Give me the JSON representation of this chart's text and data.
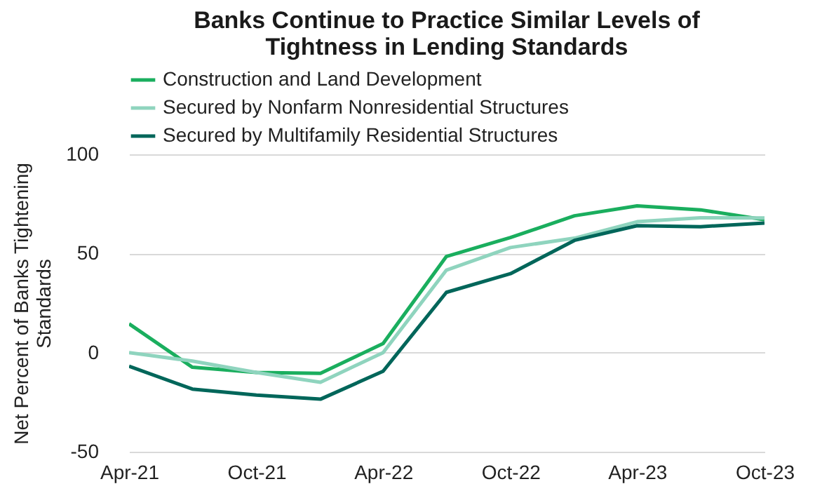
{
  "chart_data": {
    "type": "line",
    "title": [
      "Banks Continue to Practice Similar Levels of",
      "Tightness in Lending Standards"
    ],
    "ylabel": "Net Percent of Banks Tightening Standards",
    "x": [
      "2021-04",
      "2021-07",
      "2021-10",
      "2022-01",
      "2022-04",
      "2022-07",
      "2022-10",
      "2023-01",
      "2023-04",
      "2023-07",
      "2023-10"
    ],
    "series": [
      {
        "name": "Construction and Land Development",
        "color": "#1aae5e",
        "values": [
          14.5,
          -7.4,
          -10,
          -10.5,
          4.6,
          48.5,
          58,
          69,
          74,
          72,
          67
        ]
      },
      {
        "name": "Secured by Nonfarm Nonresidential Structures",
        "color": "#8fd4be",
        "values": [
          0,
          -4.3,
          -10,
          -15,
          0,
          41.6,
          53,
          57.7,
          66,
          68,
          67.9
        ]
      },
      {
        "name": "Secured by Multifamily Residential Structures",
        "color": "#00665a",
        "values": [
          -6.9,
          -18.4,
          -21.4,
          -23.5,
          -9.4,
          30.4,
          39.8,
          56.6,
          64,
          63.5,
          65.3
        ]
      }
    ],
    "xlim": [
      "2021-04",
      "2023-10"
    ],
    "xticks": [
      {
        "value": "2021-04",
        "label": "Apr-21"
      },
      {
        "value": "2021-10",
        "label": "Oct-21"
      },
      {
        "value": "2022-04",
        "label": "Apr-22"
      },
      {
        "value": "2022-10",
        "label": "Oct-22"
      },
      {
        "value": "2023-04",
        "label": "Apr-23"
      },
      {
        "value": "2023-10",
        "label": "Oct-23"
      }
    ],
    "ylim": [
      -50,
      100
    ],
    "yticks": [
      -50,
      0,
      50,
      100
    ],
    "grid": "y",
    "legend": "top",
    "marker": "none",
    "line_style": "solid"
  }
}
